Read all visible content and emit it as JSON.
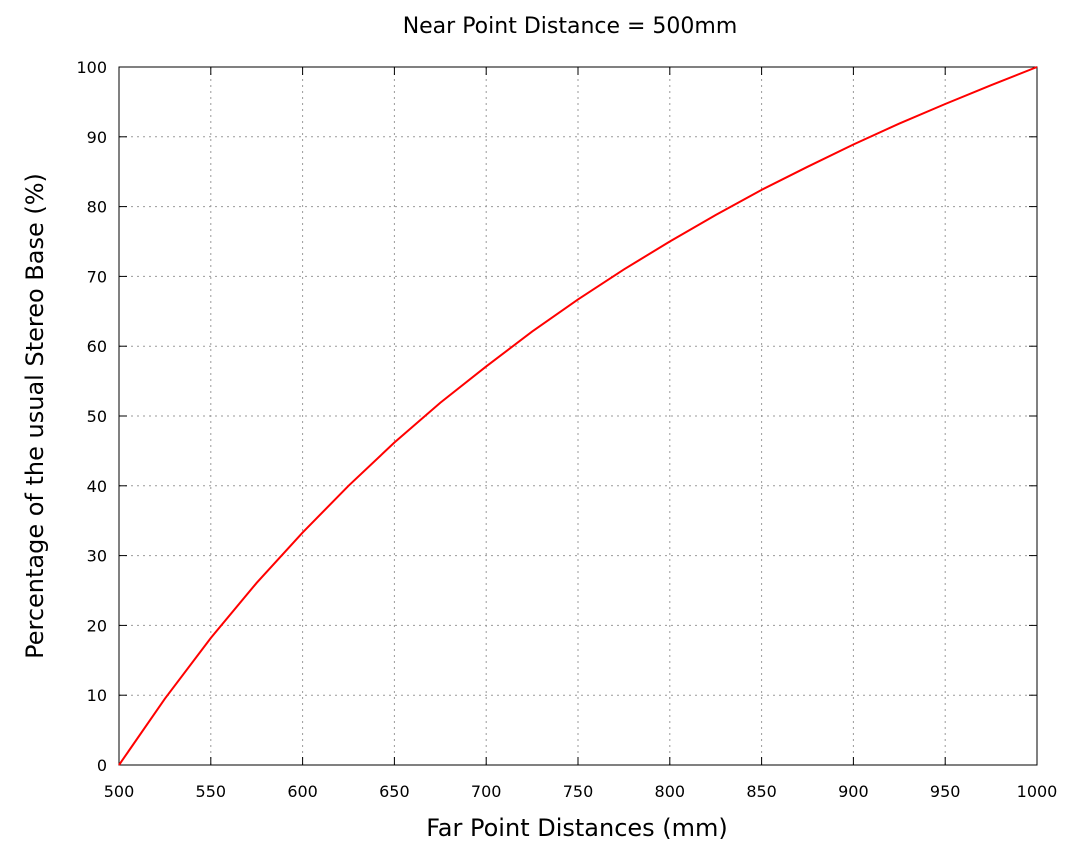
{
  "chart_data": {
    "type": "line",
    "title": "Near Point Distance = 500mm",
    "xlabel": "Far Point Distances (mm)",
    "ylabel": "Percentage of the usual Stereo Base (%)",
    "xlim": [
      500,
      1000
    ],
    "ylim": [
      0,
      100
    ],
    "xticks": [
      500,
      550,
      600,
      650,
      700,
      750,
      800,
      850,
      900,
      950,
      1000
    ],
    "yticks": [
      0,
      10,
      20,
      30,
      40,
      50,
      60,
      70,
      80,
      90,
      100
    ],
    "grid": true,
    "series": [
      {
        "color": "#ff0000",
        "x": [
          500,
          525,
          550,
          575,
          600,
          625,
          650,
          675,
          700,
          725,
          750,
          775,
          800,
          825,
          850,
          875,
          900,
          925,
          950,
          975,
          1000
        ],
        "y": [
          0,
          9.5,
          18.2,
          26.1,
          33.3,
          40.0,
          46.2,
          51.9,
          57.1,
          62.1,
          66.7,
          71.0,
          75.0,
          78.8,
          82.4,
          85.7,
          88.9,
          91.9,
          94.7,
          97.4,
          100
        ]
      }
    ]
  }
}
